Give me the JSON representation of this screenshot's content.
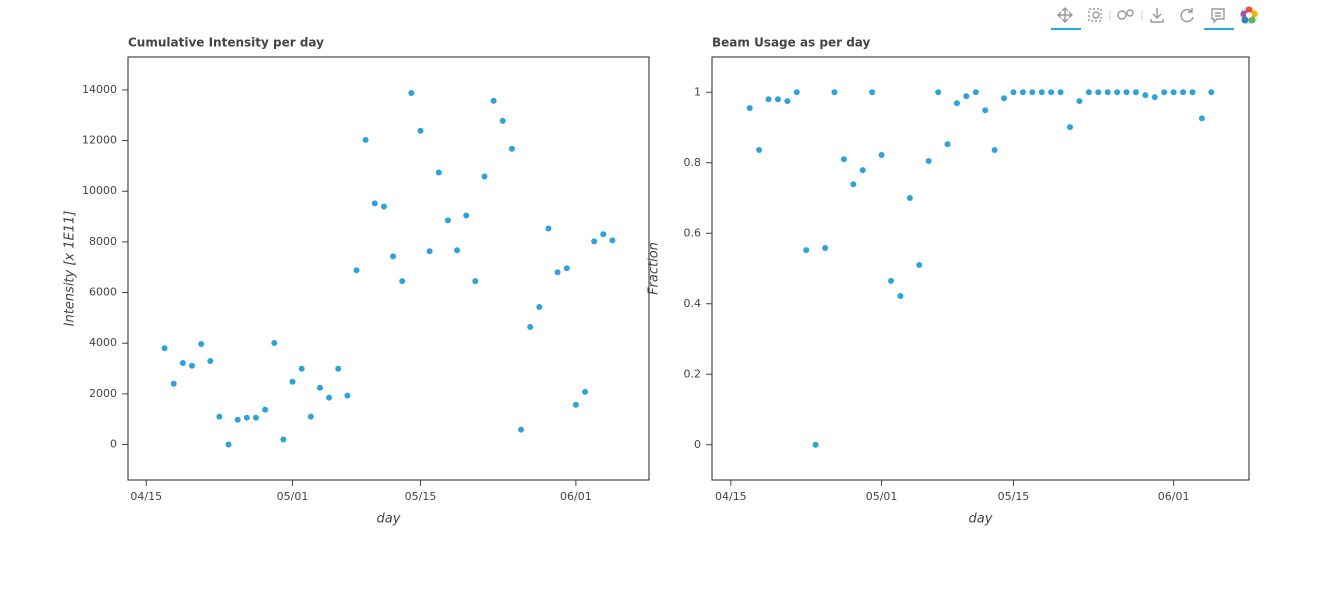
{
  "chart_data": [
    {
      "type": "scatter",
      "title": "Cumulative Intensity per day",
      "x_label": "day",
      "y_label": "Intensity [x 1E11]",
      "color": "#30a2da",
      "x": [
        "04/17",
        "04/18",
        "04/19",
        "04/20",
        "04/21",
        "04/22",
        "04/23",
        "04/24",
        "04/25",
        "04/26",
        "04/27",
        "04/28",
        "04/29",
        "04/30",
        "05/01",
        "05/02",
        "05/03",
        "05/04",
        "05/05",
        "05/06",
        "05/07",
        "05/08",
        "05/09",
        "05/10",
        "05/11",
        "05/12",
        "05/13",
        "05/14",
        "05/15",
        "05/16",
        "05/17",
        "05/18",
        "05/19",
        "05/20",
        "05/21",
        "05/22",
        "05/23",
        "05/24",
        "05/25",
        "05/26",
        "05/27",
        "05/28",
        "05/29",
        "05/30",
        "05/31",
        "06/01",
        "06/02",
        "06/03",
        "06/04",
        "06/05"
      ],
      "values": [
        3800,
        2400,
        3220,
        3110,
        3970,
        3300,
        1100,
        0,
        980,
        1060,
        1060,
        1380,
        4010,
        200,
        2480,
        2990,
        1100,
        2240,
        1850,
        2990,
        1930,
        6880,
        12030,
        9520,
        9400,
        7430,
        6450,
        13880,
        12390,
        7630,
        10740,
        8850,
        7670,
        9040,
        6450,
        10580,
        13570,
        12780,
        11680,
        590,
        4640,
        5430,
        8530,
        6800,
        6960,
        1570,
        2080,
        8020,
        8300,
        8060
      ],
      "xlim": [
        "04/13",
        "06/09"
      ],
      "xticks": [
        "04/15",
        "05/01",
        "05/15",
        "06/01"
      ],
      "ylim": [
        -1400,
        15300
      ],
      "yticks": [
        0,
        2000,
        4000,
        6000,
        8000,
        10000,
        12000,
        14000
      ]
    },
    {
      "type": "scatter",
      "title": "Beam Usage as per day",
      "x_label": "day",
      "y_label": "Fraction",
      "color": "#30a2da",
      "x": [
        "04/17",
        "04/18",
        "04/19",
        "04/20",
        "04/21",
        "04/22",
        "04/23",
        "04/24",
        "04/25",
        "04/26",
        "04/27",
        "04/28",
        "04/29",
        "04/30",
        "05/01",
        "05/02",
        "05/03",
        "05/04",
        "05/05",
        "05/06",
        "05/07",
        "05/08",
        "05/09",
        "05/10",
        "05/11",
        "05/12",
        "05/13",
        "05/14",
        "05/15",
        "05/16",
        "05/17",
        "05/18",
        "05/19",
        "05/20",
        "05/21",
        "05/22",
        "05/23",
        "05/24",
        "05/25",
        "05/26",
        "05/27",
        "05/28",
        "05/29",
        "05/30",
        "05/31",
        "06/01",
        "06/02",
        "06/03",
        "06/04",
        "06/05"
      ],
      "values": [
        0.955,
        0.836,
        0.98,
        0.98,
        0.975,
        1,
        0.552,
        0,
        0.558,
        1,
        0.81,
        0.739,
        0.779,
        1,
        0.822,
        0.465,
        0.422,
        0.7,
        0.51,
        0.805,
        1,
        0.853,
        0.969,
        0.989,
        1,
        0.949,
        0.836,
        0.983,
        1,
        1,
        1,
        1,
        1,
        1,
        0.901,
        0.975,
        1,
        1,
        1,
        1,
        1,
        1,
        0.992,
        0.986,
        1,
        1,
        1,
        1,
        0.926,
        1
      ],
      "xlim": [
        "04/13",
        "06/09"
      ],
      "xticks": [
        "04/15",
        "05/01",
        "05/15",
        "06/01"
      ],
      "ylim": [
        -0.1,
        1.1
      ],
      "yticks": [
        0,
        0.2,
        0.4,
        0.6,
        0.8,
        1
      ]
    }
  ]
}
